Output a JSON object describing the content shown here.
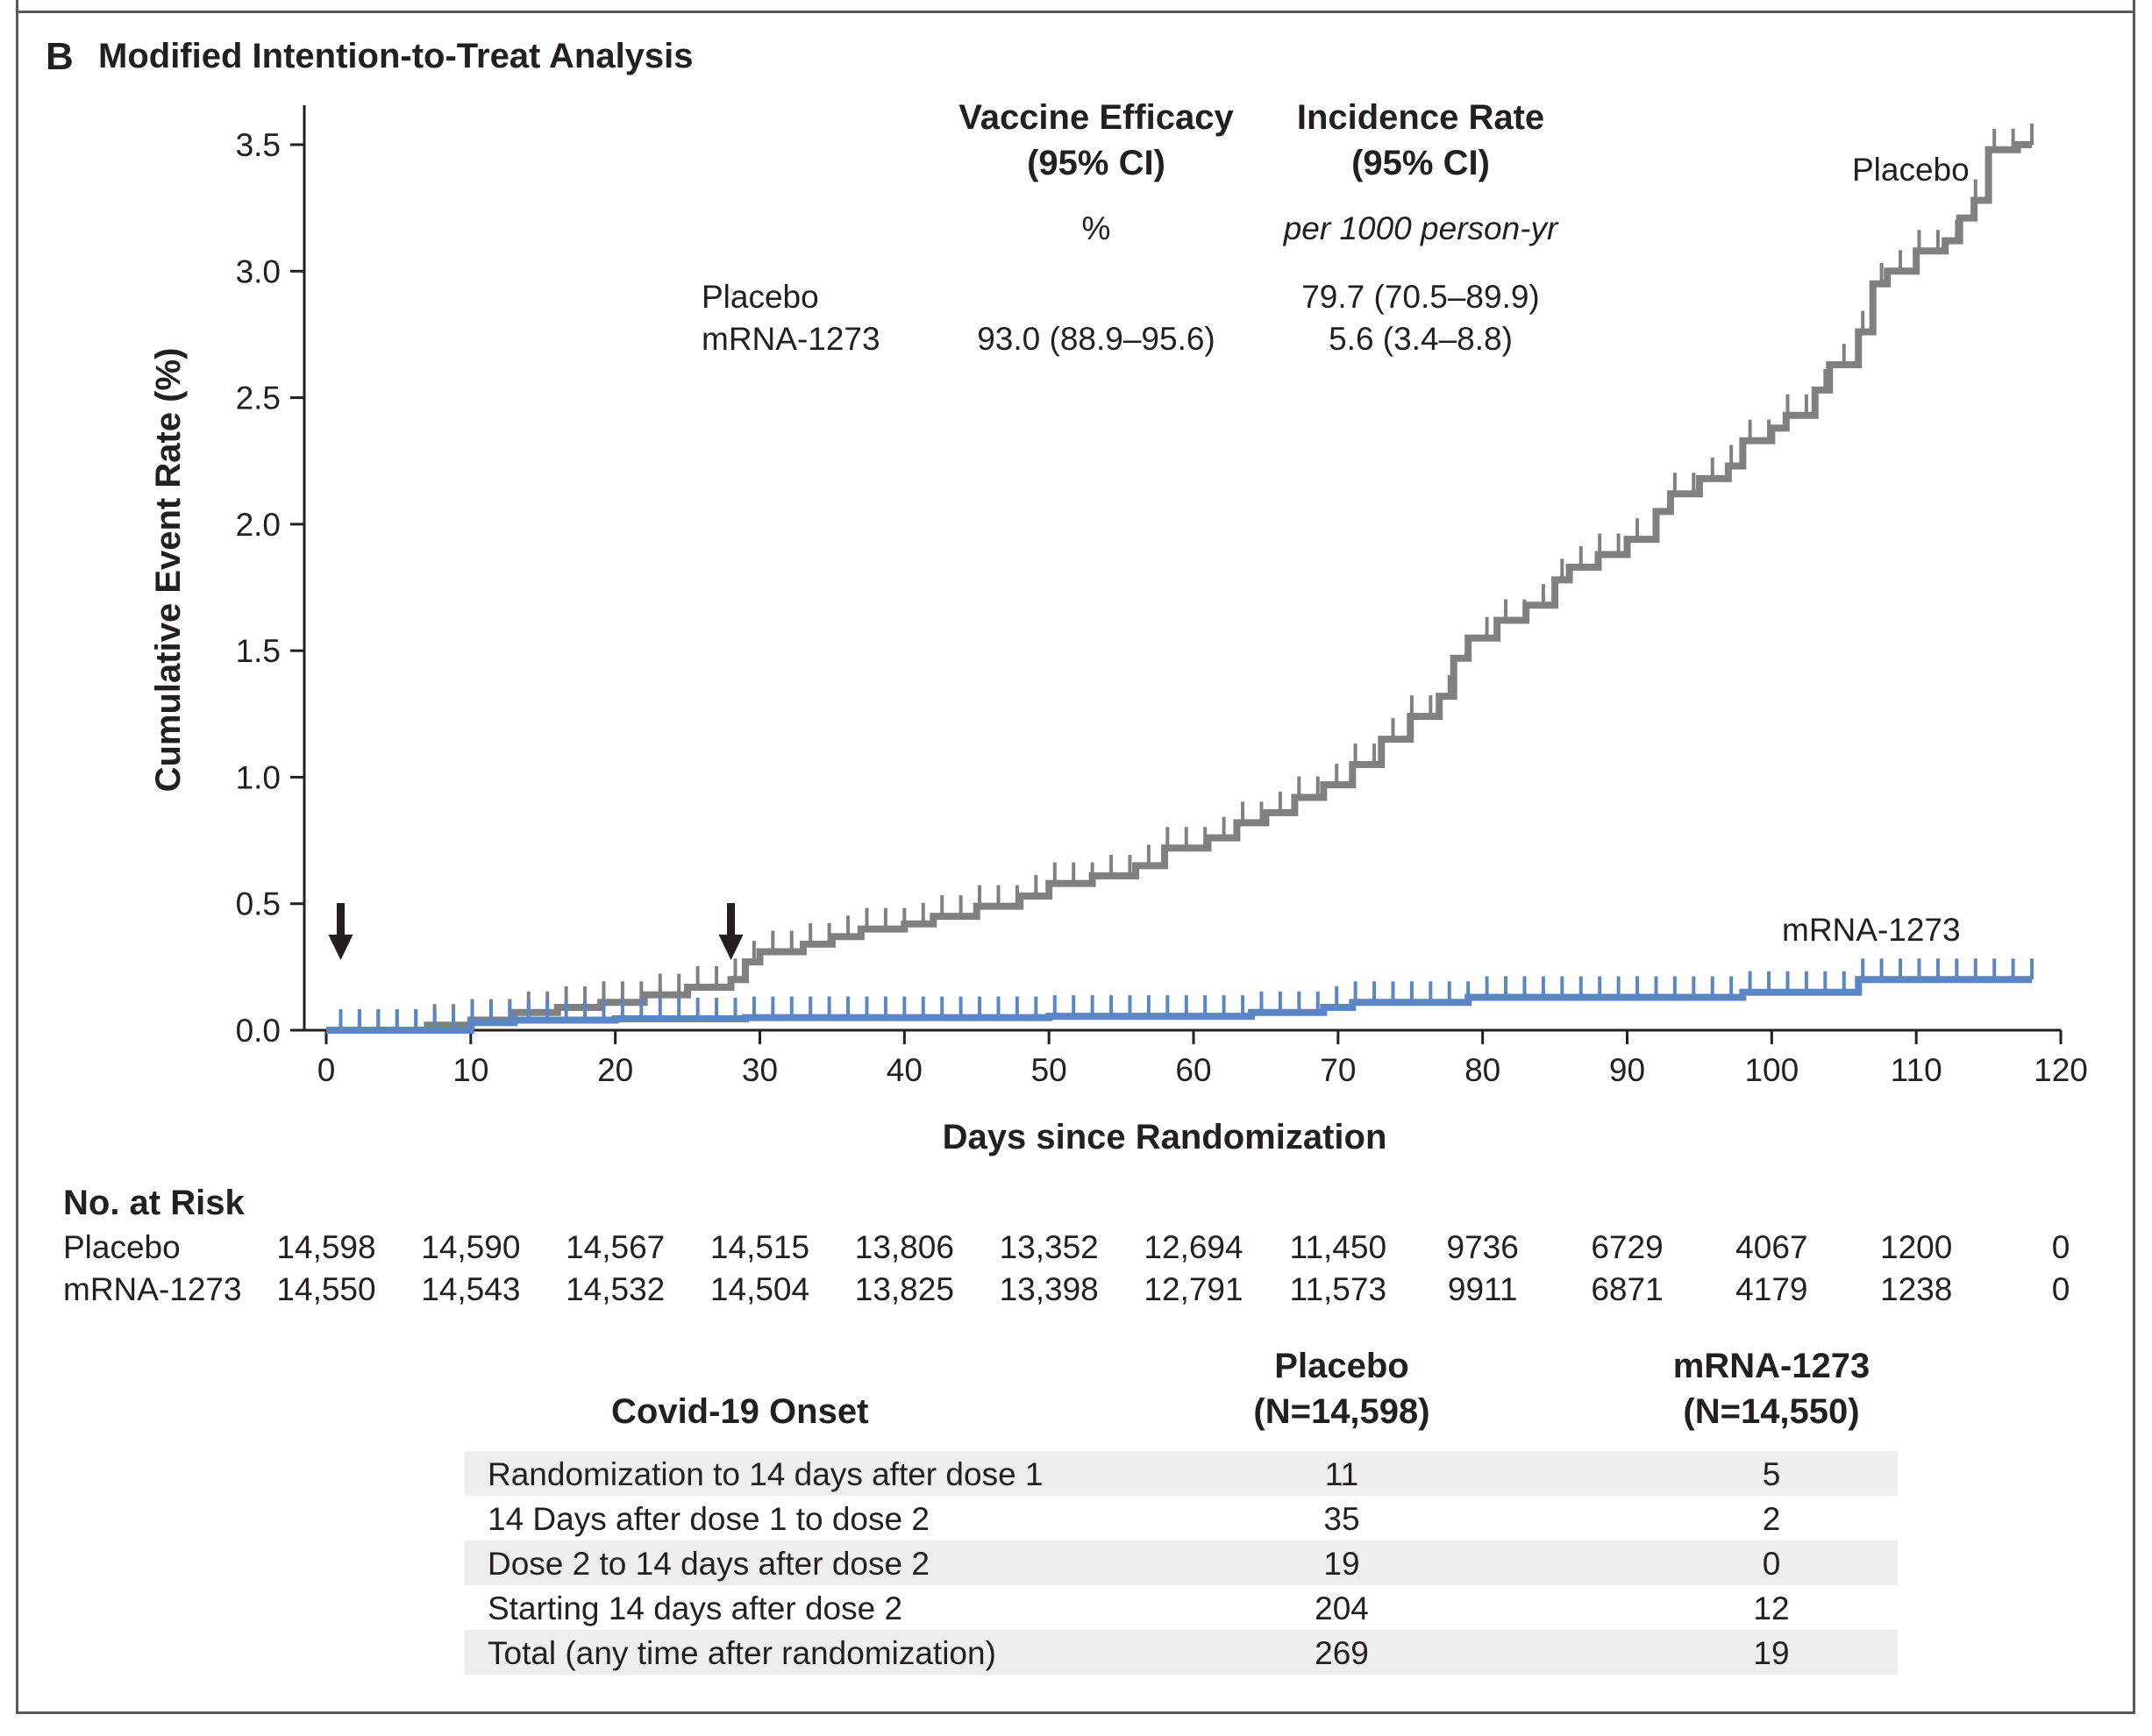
{
  "panel": {
    "letter": "B",
    "title": "Modified Intention-to-Treat Analysis"
  },
  "colors": {
    "placebo": "#808080",
    "mrna": "#5b86c5",
    "text": "#231f20",
    "frame": "#5a5a5a",
    "table_shade": "#eeeeee"
  },
  "efficacy_box": {
    "ve_header_1": "Vaccine Efficacy",
    "ve_header_2": "(95% CI)",
    "ve_unit": "%",
    "ir_header_1": "Incidence Rate",
    "ir_header_2": "(95% CI)",
    "ir_unit": "per 1000 person-yr",
    "rows": [
      {
        "label": "Placebo",
        "ve": "",
        "ir": "79.7 (70.5–89.9)"
      },
      {
        "label": "mRNA-1273",
        "ve": "93.0 (88.9–95.6)",
        "ir": "5.6 (3.4–8.8)"
      }
    ]
  },
  "chart_data": {
    "type": "line",
    "xlabel": "Days since Randomization",
    "ylabel": "Cumulative Event Rate (%)",
    "xlim": [
      0,
      120
    ],
    "ylim": [
      0,
      3.5
    ],
    "x_ticks": [
      "0",
      "10",
      "20",
      "30",
      "40",
      "50",
      "60",
      "70",
      "80",
      "90",
      "100",
      "110",
      "120"
    ],
    "y_ticks": [
      "0.0",
      "0.5",
      "1.0",
      "1.5",
      "2.0",
      "2.5",
      "3.0",
      "3.5"
    ],
    "arrows_at_days": [
      1,
      28
    ],
    "series": [
      {
        "name": "Placebo",
        "x": [
          0,
          7,
          10,
          13,
          16,
          19,
          22,
          25,
          28,
          29,
          30,
          33,
          35,
          37,
          40,
          42,
          45,
          48,
          50,
          53,
          56,
          58,
          61,
          63,
          65,
          67,
          69,
          71,
          73,
          75,
          77,
          78,
          79,
          81,
          83,
          85,
          86,
          88,
          90,
          92,
          93,
          95,
          97,
          98,
          100,
          101,
          103,
          104,
          106,
          107,
          108,
          110,
          112,
          113,
          114,
          115,
          117,
          118
        ],
        "y": [
          0,
          0.02,
          0.04,
          0.07,
          0.09,
          0.11,
          0.14,
          0.17,
          0.2,
          0.27,
          0.31,
          0.34,
          0.37,
          0.4,
          0.42,
          0.45,
          0.49,
          0.53,
          0.58,
          0.61,
          0.65,
          0.72,
          0.76,
          0.82,
          0.86,
          0.92,
          0.97,
          1.05,
          1.15,
          1.24,
          1.32,
          1.47,
          1.55,
          1.62,
          1.68,
          1.78,
          1.83,
          1.88,
          1.94,
          2.05,
          2.12,
          2.18,
          2.23,
          2.33,
          2.38,
          2.43,
          2.53,
          2.63,
          2.76,
          2.95,
          3.0,
          3.08,
          3.12,
          3.21,
          3.28,
          3.48,
          3.5,
          3.5
        ]
      },
      {
        "name": "mRNA-1273",
        "x": [
          0,
          10,
          13,
          20,
          29,
          50,
          64,
          69,
          71,
          79,
          98,
          106,
          118
        ],
        "y": [
          0,
          0.03,
          0.04,
          0.045,
          0.05,
          0.055,
          0.07,
          0.09,
          0.11,
          0.13,
          0.15,
          0.2,
          0.2
        ]
      }
    ]
  },
  "series_labels": {
    "placebo": "Placebo",
    "mrna": "mRNA-1273"
  },
  "risk_table": {
    "header": "No. at Risk",
    "rows": [
      {
        "label": "Placebo",
        "values": [
          "14,598",
          "14,590",
          "14,567",
          "14,515",
          "13,806",
          "13,352",
          "12,694",
          "11,450",
          "9736",
          "6729",
          "4067",
          "1200",
          "0"
        ]
      },
      {
        "label": "mRNA-1273",
        "values": [
          "14,550",
          "14,543",
          "14,532",
          "14,504",
          "13,825",
          "13,398",
          "12,791",
          "11,573",
          "9911",
          "6871",
          "4179",
          "1238",
          "0"
        ]
      }
    ]
  },
  "onset_table": {
    "title": "Covid-19 Onset",
    "col_placebo_1": "Placebo",
    "col_placebo_2": "(N=14,598)",
    "col_mrna_1": "mRNA-1273",
    "col_mrna_2": "(N=14,550)",
    "rows": [
      {
        "label": "Randomization to 14 days after dose 1",
        "placebo": "11",
        "mrna": "5"
      },
      {
        "label": "14 Days after dose 1 to dose 2",
        "placebo": "35",
        "mrna": "2"
      },
      {
        "label": "Dose 2 to 14 days after dose 2",
        "placebo": "19",
        "mrna": "0"
      },
      {
        "label": "Starting 14 days after dose 2",
        "placebo": "204",
        "mrna": "12"
      },
      {
        "label": "Total (any time after randomization)",
        "placebo": "269",
        "mrna": "19"
      }
    ]
  }
}
